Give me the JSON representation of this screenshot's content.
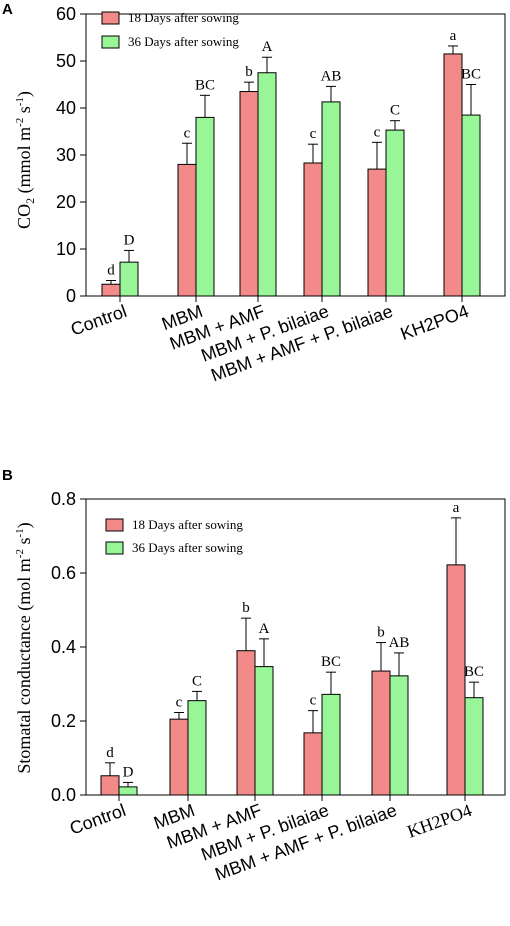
{
  "colors": {
    "series_18": "#f28a8a",
    "series_36": "#98f598",
    "axis": "#000000"
  },
  "chart_data": [
    {
      "panel": "A",
      "type": "bar",
      "ylabel_main": "CO",
      "ylabel_sub": "2",
      "ylabel_rest": " (mmol m",
      "ylabel_exp1": "-2",
      "ylabel_mid": " s",
      "ylabel_exp2": "-1",
      "ylabel_end": ")",
      "ylim": [
        0,
        60
      ],
      "yticks": [
        "0",
        "10",
        "20",
        "30",
        "40",
        "50",
        "60"
      ],
      "ytick_values": [
        0,
        10,
        20,
        30,
        40,
        50,
        60
      ],
      "categories": [
        "Control",
        "MBM",
        "MBM + AMF",
        "MBM + P. bilaiae",
        "MBM + AMF + P. bilaiae",
        "KH2PO4"
      ],
      "legend_position": "top-left",
      "series": [
        {
          "name": "18 Days after sowing",
          "values": [
            2.5,
            28,
            43.5,
            28.3,
            27,
            51.5
          ],
          "errors": [
            0.8,
            4.5,
            2.0,
            4.0,
            5.7,
            1.7
          ],
          "letters": [
            "d",
            "c",
            "b",
            "c",
            "c",
            "a"
          ]
        },
        {
          "name": "36 Days after sowing",
          "values": [
            7.2,
            38,
            47.5,
            41.3,
            35.3,
            38.5
          ],
          "errors": [
            2.5,
            4.7,
            3.3,
            3.3,
            2.0,
            6.5
          ],
          "letters": [
            "D",
            "BC",
            "A",
            "AB",
            "C",
            "BC"
          ]
        }
      ]
    },
    {
      "panel": "B",
      "type": "bar",
      "ylabel_main": "Stomatal conductance (mol m",
      "ylabel_exp1": "-2",
      "ylabel_mid": " s",
      "ylabel_exp2": "-1",
      "ylabel_end": ")",
      "ylim": [
        0,
        0.8
      ],
      "yticks": [
        "0.0",
        "0.2",
        "0.4",
        "0.6",
        "0.8"
      ],
      "ytick_values": [
        0,
        0.2,
        0.4,
        0.6,
        0.8
      ],
      "categories": [
        "Control",
        "MBM",
        "MBM + AMF",
        "MBM + P. bilaiae",
        "MBM + AMF + P. bilaiae",
        "KH2PO4"
      ],
      "legend_position": "top-left",
      "series": [
        {
          "name": "18 Days after sowing",
          "values": [
            0.052,
            0.205,
            0.39,
            0.168,
            0.335,
            0.622
          ],
          "errors": [
            0.035,
            0.018,
            0.088,
            0.06,
            0.077,
            0.127
          ],
          "letters": [
            "d",
            "c",
            "b",
            "c",
            "b",
            "a"
          ]
        },
        {
          "name": "36 Days after sowing",
          "values": [
            0.022,
            0.255,
            0.347,
            0.272,
            0.322,
            0.263
          ],
          "errors": [
            0.012,
            0.025,
            0.075,
            0.06,
            0.062,
            0.042
          ],
          "letters": [
            "D",
            "C",
            "A",
            "BC",
            "AB",
            "BC"
          ]
        }
      ]
    }
  ]
}
